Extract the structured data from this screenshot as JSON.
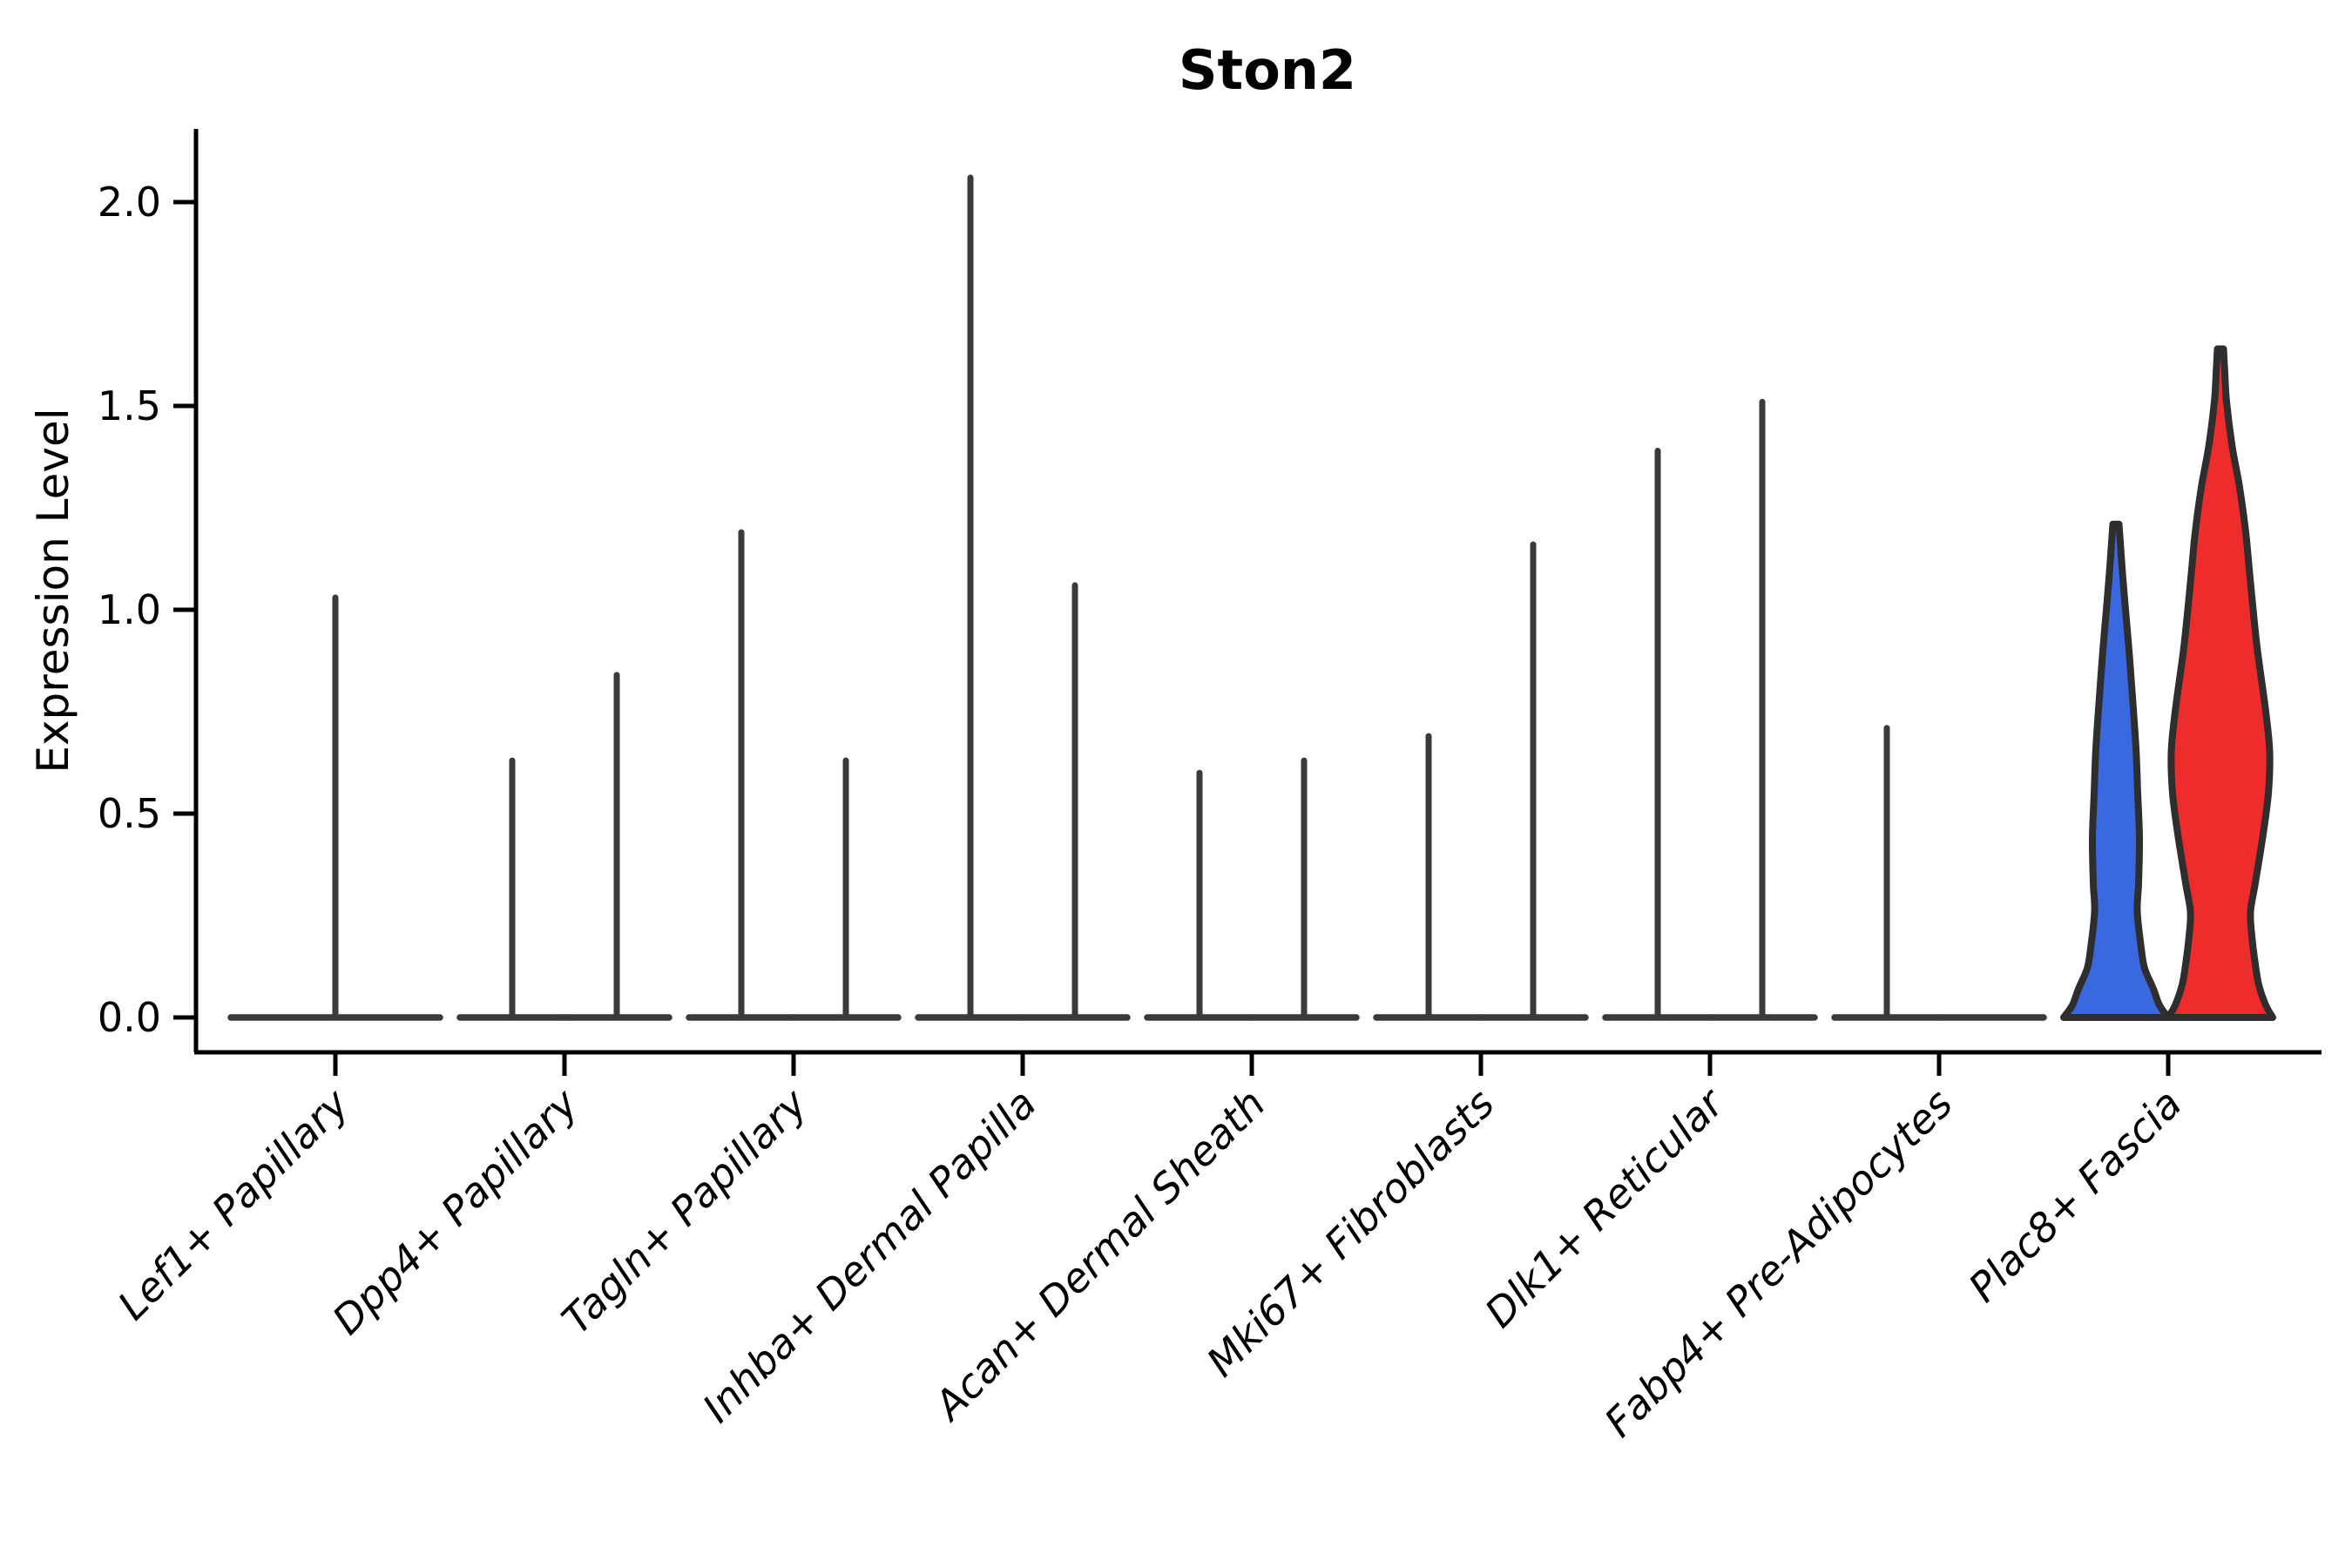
{
  "page": {
    "background": "#ffffff"
  },
  "chart_data": {
    "type": "violin",
    "title": "Ston2",
    "ylabel": "Expression Level",
    "xlabel": "",
    "legend": "none",
    "grid": false,
    "ylim": [
      -0.09,
      2.18
    ],
    "ytick_values": [
      0.0,
      0.5,
      1.0,
      1.5,
      2.0
    ],
    "ytick_labels": [
      "0.0",
      "0.5",
      "1.0",
      "1.5",
      "2.0"
    ],
    "categories": [
      "Lef1+ Papillary",
      "Dpp4+ Papillary",
      "Tagln+ Papillary",
      "Inhba+ Dermal Papilla",
      "Acan+ Dermal Sheath",
      "Mki67+ Fibroblasts",
      "Dlk1+ Reticular",
      "Fabp4+ Pre-Adipocytes",
      "Plac8+ Fascia"
    ],
    "description": "Violin plot of Ston2 expression; most violins collapse to a flat baseline at 0 with a thin spike to the maximum expressed cell. Plac8+ Fascia shows two filled violins (blue and red groups).",
    "violins": [
      {
        "category": "Lef1+ Papillary",
        "items": [
          {
            "dx": 0,
            "base_halfwidth": 120,
            "max": 1.03,
            "kind": "spike"
          }
        ]
      },
      {
        "category": "Dpp4+ Papillary",
        "items": [
          {
            "dx": -60,
            "base_halfwidth": 60,
            "max": 0.63,
            "kind": "spike"
          },
          {
            "dx": 60,
            "base_halfwidth": 60,
            "max": 0.84,
            "kind": "spike"
          }
        ]
      },
      {
        "category": "Tagln+ Papillary",
        "items": [
          {
            "dx": -60,
            "base_halfwidth": 60,
            "max": 1.19,
            "kind": "spike"
          },
          {
            "dx": 60,
            "base_halfwidth": 60,
            "max": 0.63,
            "kind": "spike"
          }
        ]
      },
      {
        "category": "Inhba+ Dermal Papilla",
        "items": [
          {
            "dx": -60,
            "base_halfwidth": 60,
            "max": 2.06,
            "kind": "spike"
          },
          {
            "dx": 60,
            "base_halfwidth": 60,
            "max": 1.06,
            "kind": "spike"
          }
        ]
      },
      {
        "category": "Acan+ Dermal Sheath",
        "items": [
          {
            "dx": -60,
            "base_halfwidth": 60,
            "max": 0.6,
            "kind": "spike"
          },
          {
            "dx": 60,
            "base_halfwidth": 60,
            "max": 0.63,
            "kind": "spike"
          }
        ]
      },
      {
        "category": "Mki67+ Fibroblasts",
        "items": [
          {
            "dx": -60,
            "base_halfwidth": 60,
            "max": 0.69,
            "kind": "spike"
          },
          {
            "dx": 60,
            "base_halfwidth": 60,
            "max": 1.16,
            "kind": "spike"
          }
        ]
      },
      {
        "category": "Dlk1+ Reticular",
        "items": [
          {
            "dx": -60,
            "base_halfwidth": 60,
            "max": 1.39,
            "kind": "spike"
          },
          {
            "dx": 60,
            "base_halfwidth": 60,
            "max": 1.51,
            "kind": "spike"
          }
        ]
      },
      {
        "category": "Fabp4+ Pre-Adipocytes",
        "items": [
          {
            "dx": -60,
            "base_halfwidth": 60,
            "max": 0.71,
            "kind": "spike"
          },
          {
            "dx": 60,
            "base_halfwidth": 60,
            "max": 0.0,
            "kind": "flat"
          }
        ]
      },
      {
        "category": "Plac8+ Fascia",
        "items": [
          {
            "dx": -60,
            "base_halfwidth": 60,
            "max": 1.21,
            "kind": "filled",
            "color_key": "blue",
            "profile": "blue"
          },
          {
            "dx": 60,
            "base_halfwidth": 60,
            "max": 1.64,
            "kind": "filled",
            "color_key": "red",
            "profile": "red"
          }
        ]
      }
    ],
    "profiles": {
      "blue": [
        [
          0,
          60
        ],
        [
          0.03,
          50
        ],
        [
          0.07,
          43
        ],
        [
          0.12,
          33
        ],
        [
          0.17,
          29
        ],
        [
          0.26,
          24.5
        ],
        [
          0.33,
          26
        ],
        [
          0.44,
          27
        ],
        [
          0.55,
          25
        ],
        [
          0.66,
          23
        ],
        [
          0.8,
          18.5
        ],
        [
          0.9,
          15
        ],
        [
          1.0,
          11
        ],
        [
          1.09,
          7.5
        ],
        [
          1.15,
          5.5
        ],
        [
          1.21,
          3.5
        ]
      ],
      "red": [
        [
          0,
          60
        ],
        [
          0.03,
          52
        ],
        [
          0.08,
          44
        ],
        [
          0.13,
          40
        ],
        [
          0.2,
          36
        ],
        [
          0.26,
          34.5
        ],
        [
          0.33,
          40
        ],
        [
          0.45,
          49
        ],
        [
          0.55,
          55
        ],
        [
          0.65,
          56.5
        ],
        [
          0.75,
          52
        ],
        [
          0.9,
          42.5
        ],
        [
          1.0,
          37.5
        ],
        [
          1.1,
          33
        ],
        [
          1.19,
          29
        ],
        [
          1.3,
          22
        ],
        [
          1.4,
          13.5
        ],
        [
          1.51,
          7
        ],
        [
          1.58,
          5
        ],
        [
          1.64,
          3.5
        ]
      ]
    },
    "colors": {
      "blue": "#3a68df",
      "red": "#ee2c2c",
      "violin_line": "#3a3a3a",
      "violin_outline": "#2e2e2e",
      "axis": "#000000",
      "text": "#000000"
    }
  }
}
